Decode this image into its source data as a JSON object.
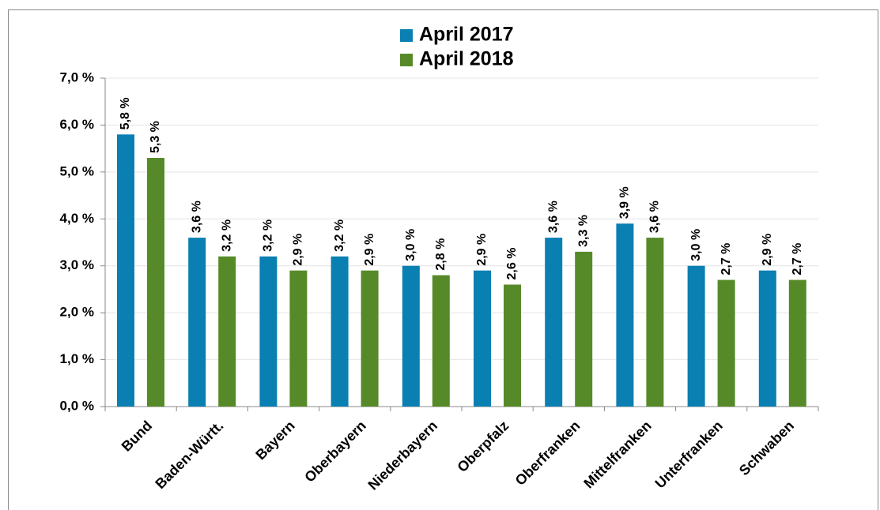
{
  "chart_data": {
    "type": "bar",
    "categories": [
      "Bund",
      "Baden-Württ.",
      "Bayern",
      "Oberbayern",
      "Niederbayern",
      "Oberpfalz",
      "Oberfranken",
      "Mittelfranken",
      "Unterfranken",
      "Schwaben"
    ],
    "series": [
      {
        "name": "April 2017",
        "color": "#0a7fb2",
        "values": [
          5.8,
          3.6,
          3.2,
          3.2,
          3.0,
          2.9,
          3.6,
          3.9,
          3.0,
          2.9
        ],
        "value_labels": [
          "5,8 %",
          "3,6 %",
          "3,2 %",
          "3,2 %",
          "3,0 %",
          "2,9 %",
          "3,6 %",
          "3,9 %",
          "3,0 %",
          "2,9 %"
        ]
      },
      {
        "name": "April 2018",
        "color": "#568a28",
        "values": [
          5.3,
          3.2,
          2.9,
          2.9,
          2.8,
          2.6,
          3.3,
          3.6,
          2.7,
          2.7
        ],
        "value_labels": [
          "5,3 %",
          "3,2 %",
          "2,9 %",
          "2,9 %",
          "2,8 %",
          "2,6 %",
          "3,3 %",
          "3,6 %",
          "2,7 %",
          "2,7 %"
        ]
      }
    ],
    "ylim": [
      0,
      7
    ],
    "yticks": [
      {
        "value": 0,
        "label": "0,0 %"
      },
      {
        "value": 1,
        "label": "1,0 %"
      },
      {
        "value": 2,
        "label": "2,0 %"
      },
      {
        "value": 3,
        "label": "3,0 %"
      },
      {
        "value": 4,
        "label": "4,0 %"
      },
      {
        "value": 5,
        "label": "5,0 %"
      },
      {
        "value": 6,
        "label": "6,0 %"
      },
      {
        "value": 7,
        "label": "7,0 %"
      }
    ],
    "grid": true
  }
}
